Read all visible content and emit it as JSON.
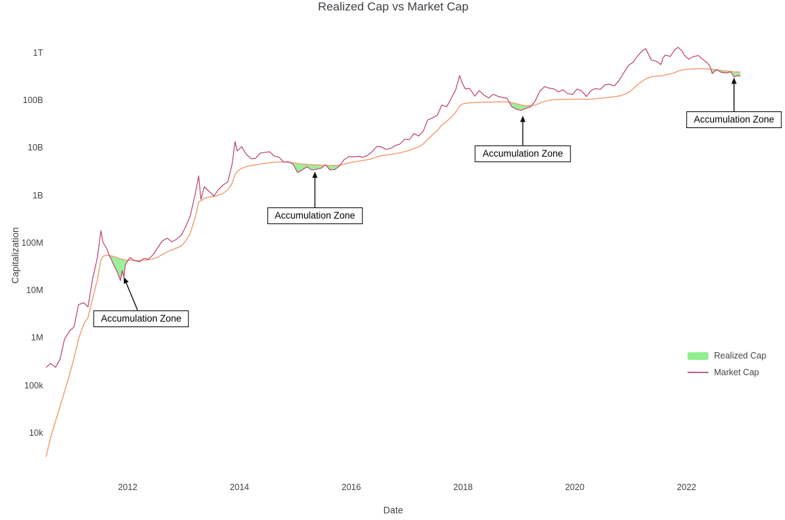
{
  "figure": {
    "title": "Realized Cap vs Market Cap",
    "x_axis": {
      "title": "Date"
    },
    "y_axis": {
      "title": "Capitalization"
    },
    "legend": {
      "items": [
        {
          "id": "realized-cap",
          "label": "Realized Cap",
          "swatch": "fill",
          "color": "#90ee90"
        },
        {
          "id": "market-cap",
          "label": "Market Cap",
          "swatch": "line",
          "color": "#b4688a"
        }
      ]
    },
    "colors": {
      "market_cap_line": "#bb4070",
      "realized_cap_line": "#f0a177",
      "accumulation_fill": "#90ee90",
      "annotation_border": "#000000",
      "arrow": "#111111",
      "axis_text": "#444444",
      "title_text": "#3d4046"
    }
  },
  "chart_data": {
    "type": "line",
    "title": "Realized Cap vs Market Cap",
    "xlabel": "Date",
    "ylabel": "Capitalization",
    "y_scale": "log",
    "x_unit": "decimal_year",
    "grid": false,
    "legend_position": "right-middle",
    "xlim": [
      2010.45,
      2023.1
    ],
    "ylim": [
      2000.0,
      2500000000000.0
    ],
    "x_ticks": [
      {
        "label": "2012",
        "year": 2012
      },
      {
        "label": "2014",
        "year": 2014
      },
      {
        "label": "2016",
        "year": 2016
      },
      {
        "label": "2018",
        "year": 2018
      },
      {
        "label": "2020",
        "year": 2020
      },
      {
        "label": "2022",
        "year": 2022
      }
    ],
    "y_ticks": [
      {
        "label": "10k",
        "value": 10000.0
      },
      {
        "label": "100k",
        "value": 100000.0
      },
      {
        "label": "1M",
        "value": 1000000.0
      },
      {
        "label": "10M",
        "value": 10000000.0
      },
      {
        "label": "100M",
        "value": 100000000.0
      },
      {
        "label": "1B",
        "value": 1000000000.0
      },
      {
        "label": "10B",
        "value": 10000000000.0
      },
      {
        "label": "100B",
        "value": 100000000000.0
      },
      {
        "label": "1T",
        "value": 1000000000000.0
      }
    ],
    "x": [
      2010.54,
      2010.62,
      2010.71,
      2010.79,
      2010.87,
      2010.96,
      2011.04,
      2011.12,
      2011.21,
      2011.29,
      2011.37,
      2011.46,
      2011.52,
      2011.56,
      2011.62,
      2011.67,
      2011.71,
      2011.76,
      2011.81,
      2011.87,
      2011.9,
      2011.93,
      2011.96,
      2012.04,
      2012.12,
      2012.21,
      2012.29,
      2012.37,
      2012.46,
      2012.54,
      2012.62,
      2012.71,
      2012.79,
      2012.87,
      2012.96,
      2013.04,
      2013.12,
      2013.21,
      2013.27,
      2013.31,
      2013.37,
      2013.46,
      2013.54,
      2013.62,
      2013.71,
      2013.79,
      2013.87,
      2013.92,
      2013.96,
      2014.04,
      2014.12,
      2014.21,
      2014.29,
      2014.37,
      2014.46,
      2014.54,
      2014.62,
      2014.71,
      2014.79,
      2014.87,
      2014.96,
      2015.04,
      2015.12,
      2015.21,
      2015.29,
      2015.37,
      2015.46,
      2015.54,
      2015.62,
      2015.71,
      2015.79,
      2015.87,
      2015.96,
      2016.04,
      2016.12,
      2016.21,
      2016.29,
      2016.37,
      2016.46,
      2016.54,
      2016.62,
      2016.71,
      2016.79,
      2016.87,
      2016.96,
      2017.04,
      2017.12,
      2017.21,
      2017.29,
      2017.37,
      2017.46,
      2017.54,
      2017.62,
      2017.71,
      2017.79,
      2017.87,
      2017.94,
      2017.98,
      2018.04,
      2018.12,
      2018.21,
      2018.29,
      2018.37,
      2018.46,
      2018.54,
      2018.62,
      2018.71,
      2018.79,
      2018.87,
      2018.96,
      2019.04,
      2019.12,
      2019.21,
      2019.29,
      2019.37,
      2019.46,
      2019.54,
      2019.62,
      2019.71,
      2019.79,
      2019.87,
      2019.96,
      2020.04,
      2020.12,
      2020.21,
      2020.29,
      2020.37,
      2020.46,
      2020.54,
      2020.62,
      2020.71,
      2020.79,
      2020.87,
      2020.96,
      2021.04,
      2021.12,
      2021.21,
      2021.27,
      2021.37,
      2021.46,
      2021.54,
      2021.58,
      2021.62,
      2021.71,
      2021.79,
      2021.85,
      2021.92,
      2021.96,
      2022.04,
      2022.12,
      2022.21,
      2022.29,
      2022.37,
      2022.42,
      2022.46,
      2022.54,
      2022.62,
      2022.71,
      2022.79,
      2022.85,
      2022.92,
      2022.96
    ],
    "series": [
      {
        "name": "Market Cap",
        "color": "#bb4070",
        "values": [
          240000.0,
          290000.0,
          240000.0,
          360000.0,
          950000.0,
          1400000.0,
          1700000.0,
          5000000.0,
          5500000.0,
          4500000.0,
          17000000.0,
          50000000.0,
          180000000.0,
          100000000.0,
          78000000.0,
          54000000.0,
          44000000.0,
          32000000.0,
          25000000.0,
          16000000.0,
          26000000.0,
          19000000.0,
          35000000.0,
          49000000.0,
          42500000.0,
          40000000.0,
          47000000.0,
          45000000.0,
          57000000.0,
          80000000.0,
          110000000.0,
          125000000.0,
          105000000.0,
          118000000.0,
          145000000.0,
          220000000.0,
          370000000.0,
          1100000000.0,
          2550000000.0,
          820000000.0,
          1500000000.0,
          1200000000.0,
          960000000.0,
          1300000000.0,
          1650000000.0,
          1900000000.0,
          4600000000.0,
          13500000000.0,
          8600000000.0,
          10500000000.0,
          7300000000.0,
          5900000000.0,
          6000000000.0,
          7700000000.0,
          8000000000.0,
          8200000000.0,
          6700000000.0,
          6300000000.0,
          5000000000.0,
          5100000000.0,
          4500000000.0,
          3000000000.0,
          3400000000.0,
          4000000000.0,
          3400000000.0,
          3500000000.0,
          3700000000.0,
          4350000000.0,
          3400000000.0,
          3500000000.0,
          4100000000.0,
          5600000000.0,
          6500000000.0,
          6400000000.0,
          6600000000.0,
          6300000000.0,
          6900000000.0,
          8200000000.0,
          10600000000.0,
          10400000000.0,
          9200000000.0,
          9700000000.0,
          11100000000.0,
          11900000000.0,
          15200000000.0,
          14700000000.0,
          19700000000.0,
          17700000000.0,
          22500000000.0,
          38500000000.0,
          42500000000.0,
          48500000000.0,
          79000000000.0,
          73000000000.0,
          109000000000.0,
          167000000000.0,
          330000000000.0,
          237000000000.0,
          173000000000.0,
          176000000000.0,
          121000000000.0,
          158000000000.0,
          129000000000.0,
          111000000000.0,
          133000000000.0,
          121000000000.0,
          114000000000.0,
          110000000000.0,
          73000000000.0,
          64000000000.0,
          61000000000.0,
          67000000000.0,
          73000000000.0,
          95000000000.0,
          151000000000.0,
          193000000000.0,
          179000000000.0,
          173000000000.0,
          150000000000.0,
          166000000000.0,
          138000000000.0,
          132000000000.0,
          171000000000.0,
          158000000000.0,
          119000000000.0,
          160000000000.0,
          175000000000.0,
          169000000000.0,
          210000000000.0,
          216000000000.0,
          200000000000.0,
          257000000000.0,
          366000000000.0,
          540000000000.0,
          620000000000.0,
          840000000000.0,
          1100000000000.0,
          1210000000000.0,
          700000000000.0,
          660000000000.0,
          560000000000.0,
          780000000000.0,
          890000000000.0,
          830000000000.0,
          1160000000000.0,
          1290000000000.0,
          1080000000000.0,
          880000000000.0,
          730000000000.0,
          820000000000.0,
          870000000000.0,
          720000000000.0,
          610000000000.0,
          520000000000.0,
          362000000000.0,
          440000000000.0,
          385000000000.0,
          372000000000.0,
          393000000000.0,
          310000000000.0,
          330000000000.0,
          320000000000.0
        ]
      },
      {
        "name": "Realized Cap",
        "color": "#f0a177",
        "fill_below_color": "#90ee90",
        "values": [
          3200.0,
          8000.0,
          18000.0,
          36000.0,
          75000.0,
          170000.0,
          380000.0,
          950000.0,
          1900000.0,
          2700000.0,
          6500000.0,
          17000000.0,
          43000000.0,
          52000000.0,
          55000000.0,
          54000000.0,
          53000000.0,
          51000000.0,
          49000000.0,
          46000000.0,
          45000000.0,
          44000000.0,
          43500000.0,
          43000000.0,
          42500000.0,
          42000000.0,
          43000000.0,
          44000000.0,
          46000000.0,
          50000000.0,
          57000000.0,
          65000000.0,
          71000000.0,
          77000000.0,
          86000000.0,
          110000000.0,
          160000000.0,
          350000000.0,
          720000000.0,
          760000000.0,
          860000000.0,
          920000000.0,
          940000000.0,
          1000000000.0,
          1100000000.0,
          1300000000.0,
          1800000000.0,
          2700000000.0,
          3200000000.0,
          3700000000.0,
          4000000000.0,
          4200000000.0,
          4350000000.0,
          4550000000.0,
          4700000000.0,
          4850000000.0,
          4950000000.0,
          5000000000.0,
          5000000000.0,
          4950000000.0,
          4850000000.0,
          4650000000.0,
          4500000000.0,
          4450000000.0,
          4400000000.0,
          4350000000.0,
          4300000000.0,
          4300000000.0,
          4250000000.0,
          4250000000.0,
          4300000000.0,
          4500000000.0,
          4800000000.0,
          5000000000.0,
          5200000000.0,
          5400000000.0,
          5600000000.0,
          5900000000.0,
          6400000000.0,
          6800000000.0,
          7000000000.0,
          7200000000.0,
          7500000000.0,
          7800000000.0,
          8300000000.0,
          8800000000.0,
          9600000000.0,
          10500000000.0,
          12000000000.0,
          15000000000.0,
          19000000000.0,
          23000000000.0,
          30000000000.0,
          36000000000.0,
          44000000000.0,
          56000000000.0,
          75000000000.0,
          82000000000.0,
          86000000000.0,
          88000000000.0,
          89000000000.0,
          90000000000.0,
          90500000000.0,
          91000000000.0,
          91500000000.0,
          92000000000.0,
          92000000000.0,
          91500000000.0,
          89000000000.0,
          84000000000.0,
          79000000000.0,
          77000000000.0,
          76000000000.0,
          79000000000.0,
          86000000000.0,
          94000000000.0,
          99000000000.0,
          102000000000.0,
          103000000000.0,
          104000000000.0,
          104000000000.0,
          104000000000.0,
          105000000000.0,
          106000000000.0,
          104000000000.0,
          105000000000.0,
          107000000000.0,
          109000000000.0,
          112000000000.0,
          115000000000.0,
          118000000000.0,
          122000000000.0,
          130000000000.0,
          145000000000.0,
          170000000000.0,
          210000000000.0,
          250000000000.0,
          280000000000.0,
          310000000000.0,
          320000000000.0,
          325000000000.0,
          330000000000.0,
          340000000000.0,
          355000000000.0,
          380000000000.0,
          410000000000.0,
          430000000000.0,
          440000000000.0,
          450000000000.0,
          455000000000.0,
          460000000000.0,
          460000000000.0,
          455000000000.0,
          450000000000.0,
          445000000000.0,
          435000000000.0,
          420000000000.0,
          410000000000.0,
          405000000000.0,
          395000000000.0,
          392000000000.0,
          390000000000.0
        ]
      }
    ],
    "fill_between": {
      "color": "#90ee90",
      "rule": "where Market Cap < Realized Cap"
    },
    "annotations": [
      {
        "label": "Accumulation Zone",
        "x": 2011.93,
        "y": 19000000.0,
        "ax": 25,
        "ay": 60
      },
      {
        "label": "Accumulation Zone",
        "x": 2015.35,
        "y": 3150000000.0,
        "ax": 0,
        "ay": 64
      },
      {
        "label": "Accumulation Zone",
        "x": 2019.07,
        "y": 47000000000.0,
        "ax": 0,
        "ay": 55
      },
      {
        "label": "Accumulation Zone",
        "x": 2022.85,
        "y": 300000000000.0,
        "ax": 0,
        "ay": 61
      }
    ]
  }
}
